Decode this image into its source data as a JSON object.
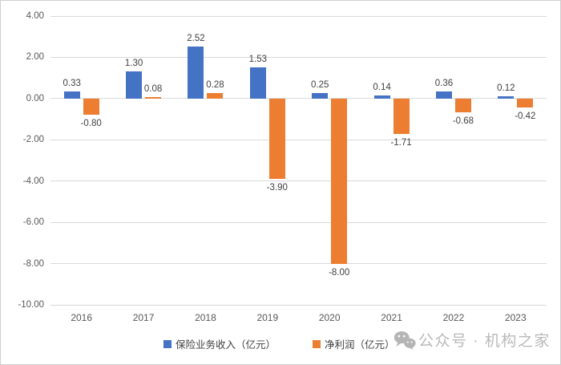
{
  "chart_data": {
    "type": "bar",
    "title": "",
    "categories": [
      "2016",
      "2017",
      "2018",
      "2019",
      "2020",
      "2021",
      "2022",
      "2023"
    ],
    "series": [
      {
        "name": "保险业务收入（亿元）",
        "color": "#4472C4",
        "values": [
          0.33,
          1.3,
          2.52,
          1.53,
          0.25,
          0.14,
          0.36,
          0.12
        ]
      },
      {
        "name": "净利润（亿元）",
        "color": "#ED7D31",
        "values": [
          -0.8,
          0.08,
          0.28,
          -3.9,
          -8.0,
          -1.71,
          -0.68,
          -0.42
        ]
      }
    ],
    "y_ticks": [
      4.0,
      2.0,
      0.0,
      -2.0,
      -4.0,
      -6.0,
      -8.0,
      -10.0
    ],
    "ylim": [
      -10,
      4
    ],
    "value_decimals": 2,
    "grid": true,
    "legend_position": "bottom",
    "data_labels": true
  },
  "watermark": {
    "text": "公众号 · 机构之家",
    "icon": "wechat-icon"
  },
  "colors": {
    "grid": "#d9d9d9",
    "axis_text": "#595959",
    "data_label_text": "#404040",
    "watermark": "#b9b9b9",
    "series1": "#4472C4",
    "series2": "#ED7D31"
  }
}
